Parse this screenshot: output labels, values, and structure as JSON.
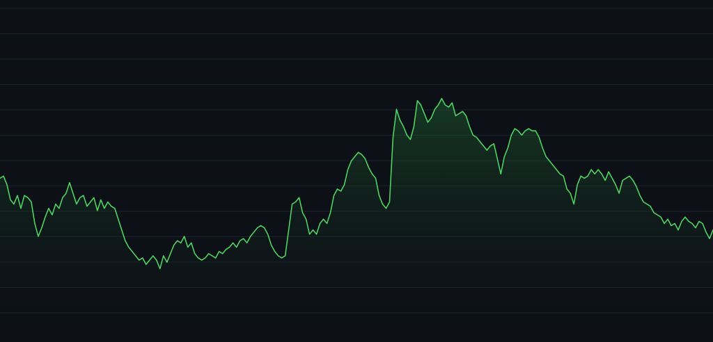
{
  "colors": {
    "background": "#0d1017",
    "grid": "#1c2330",
    "line": "#4fd262",
    "fill_top": "#1d5a2c",
    "fill_bottom": "#0d1017"
  },
  "chart_data": {
    "type": "area",
    "title": "",
    "xlabel": "",
    "ylabel": "",
    "grid": true,
    "legend": "none",
    "ylim": [
      0,
      100
    ],
    "grid_lines": 13,
    "series": [
      {
        "values": [
          56,
          57,
          53,
          46,
          44,
          48,
          42,
          48,
          47,
          45,
          35,
          29,
          33,
          38,
          42,
          39,
          44,
          42,
          47,
          49,
          54,
          49,
          44,
          47,
          48,
          43,
          45,
          47,
          41,
          46,
          42,
          45,
          43,
          42,
          37,
          32,
          27,
          24,
          22,
          20,
          18,
          19,
          16,
          18,
          20,
          18,
          14,
          20,
          17,
          21,
          25,
          27,
          26,
          29,
          24,
          26,
          21,
          19,
          18,
          19,
          21,
          20,
          19,
          22,
          21,
          23,
          24,
          26,
          24,
          27,
          28,
          26,
          29,
          31,
          33,
          34,
          33,
          30,
          25,
          22,
          20,
          19,
          20,
          32,
          44,
          45,
          47,
          40,
          37,
          30,
          32,
          30,
          35,
          37,
          35,
          40,
          48,
          51,
          50,
          53,
          60,
          64,
          66,
          68,
          67,
          65,
          61,
          58,
          56,
          48,
          44,
          42,
          45,
          75,
          88,
          83,
          80,
          76,
          74,
          80,
          92,
          90,
          86,
          82,
          84,
          88,
          90,
          93,
          90,
          89,
          91,
          85,
          86,
          87,
          85,
          80,
          76,
          75,
          73,
          71,
          69,
          71,
          72,
          65,
          58,
          66,
          70,
          76,
          79,
          78,
          76,
          78,
          79,
          78,
          78,
          75,
          70,
          66,
          64,
          62,
          60,
          58,
          57,
          51,
          49,
          44,
          53,
          57,
          56,
          57,
          60,
          58,
          60,
          58,
          55,
          59,
          56,
          53,
          49,
          55,
          56,
          57,
          55,
          52,
          48,
          45,
          44,
          43,
          40,
          39,
          38,
          35,
          37,
          34,
          35,
          32,
          36,
          38,
          36,
          35,
          33,
          36,
          35,
          31,
          28,
          32
        ]
      }
    ]
  }
}
